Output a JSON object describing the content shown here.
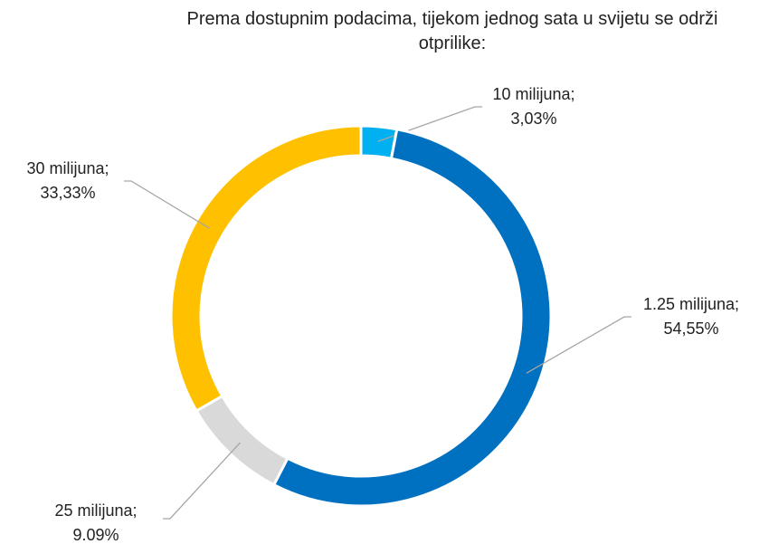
{
  "chart_data": {
    "type": "donut",
    "title": "Prema dostupnim podacima, tijekom jednog sata u svijetu se održi otprilike:",
    "categories": [
      "10 milijuna;",
      "1.25 milijuna;",
      "25 milijuna;",
      "30 milijuna;"
    ],
    "values": [
      3.03,
      54.55,
      9.09,
      33.33
    ],
    "value_labels": [
      "3,03%",
      "54,55%",
      "9.09%",
      "33,33%"
    ],
    "colors": [
      "#00b0f0",
      "#0070c0",
      "#d9d9d9",
      "#ffc000"
    ]
  }
}
